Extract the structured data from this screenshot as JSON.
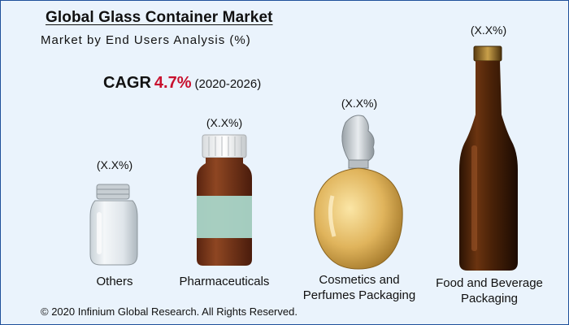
{
  "title": "Global Glass Container Market",
  "subtitle": "Market by End Users Analysis (%)",
  "cagr": {
    "label": "CAGR",
    "value": "4.7%",
    "period": "(2020-2026)"
  },
  "footer": "© 2020 Infinium Global Research. All Rights Reserved.",
  "colors": {
    "accent_red": "#c8102e",
    "frame": "#1f4f9a",
    "background": "#eaf3fc"
  },
  "chart_data": {
    "type": "bar",
    "title": "Global Glass Container Market",
    "subtitle": "Market by End Users Analysis (%)",
    "categories": [
      "Others",
      "Pharmaceuticals",
      "Cosmetics and Perfumes Packaging",
      "Food and Beverage Packaging"
    ],
    "category_lines": [
      [
        "Others"
      ],
      [
        "Pharmaceuticals"
      ],
      [
        "Cosmetics and",
        "Perfumes Packaging"
      ],
      [
        "Food and Beverage",
        "Packaging"
      ]
    ],
    "value_labels": [
      "(X.X%)",
      "(X.X%)",
      "(X.X%)",
      "(X.X%)"
    ],
    "rank": [
      1,
      2,
      3,
      4
    ],
    "icons": [
      "glass-jar-icon",
      "medicine-bottle-icon",
      "perfume-bottle-icon",
      "beer-bottle-icon"
    ]
  }
}
